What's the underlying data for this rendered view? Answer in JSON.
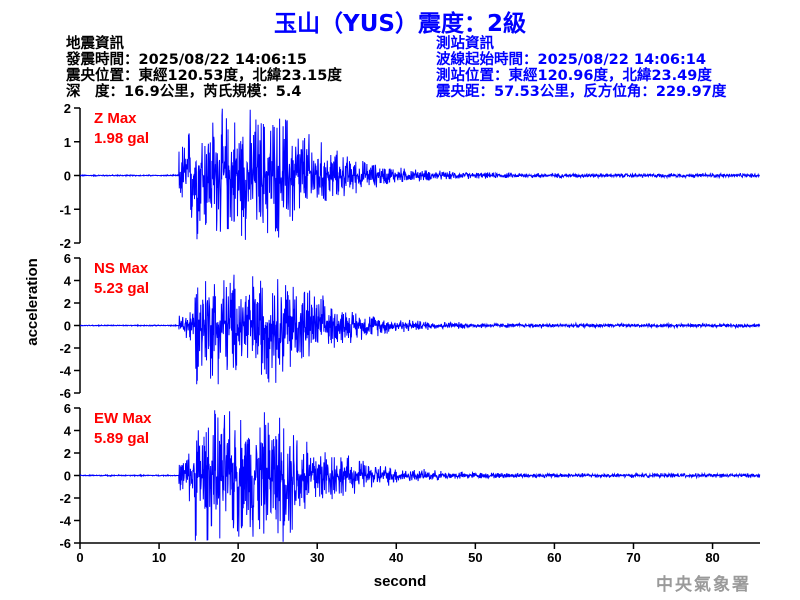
{
  "title": "玉山（YUS）震度：2級",
  "event_info": {
    "heading": "地震資訊",
    "origin_time": "發震時間：2025/08/22 14:06:15",
    "epicenter": "震央位置：東經120.53度，北緯23.15度",
    "depth_magnitude": "深　度：16.9公里，芮氏規模：5.4"
  },
  "station_info": {
    "heading": "測站資訊",
    "wave_start": "波線起始時間：2025/08/22 14:06:14",
    "location": "測站位置：東經120.96度，北緯23.49度",
    "distance": "震央距：57.53公里，反方位角：229.97度"
  },
  "logo_text": "中央氣象署",
  "colors": {
    "trace": "#0000ff",
    "label": "#ff0000",
    "title": "#0000ff"
  },
  "chart_data": [
    {
      "type": "line",
      "component": "Z",
      "label": "Z Max",
      "peak_label": "1.98 gal",
      "peak": 1.98,
      "ylim": [
        -2,
        2
      ],
      "yticks": [
        -2,
        -1,
        0,
        1,
        2
      ],
      "onset_s": 12.5
    },
    {
      "type": "line",
      "component": "NS",
      "label": "NS Max",
      "peak_label": "5.23 gal",
      "peak": 5.23,
      "ylim": [
        -6,
        6
      ],
      "yticks": [
        -6,
        -4,
        -2,
        0,
        2,
        4,
        6
      ],
      "onset_s": 12.5
    },
    {
      "type": "line",
      "component": "EW",
      "label": "EW Max",
      "peak_label": "5.89 gal",
      "peak": 5.89,
      "ylim": [
        -6,
        6
      ],
      "yticks": [
        -6,
        -4,
        -2,
        0,
        2,
        4,
        6
      ],
      "onset_s": 12.5
    }
  ],
  "xaxis": {
    "label": "second",
    "xlim": [
      0,
      86
    ],
    "ticks": [
      0,
      10,
      20,
      30,
      40,
      50,
      60,
      70,
      80
    ]
  },
  "yaxis": {
    "label": "acceleration"
  }
}
